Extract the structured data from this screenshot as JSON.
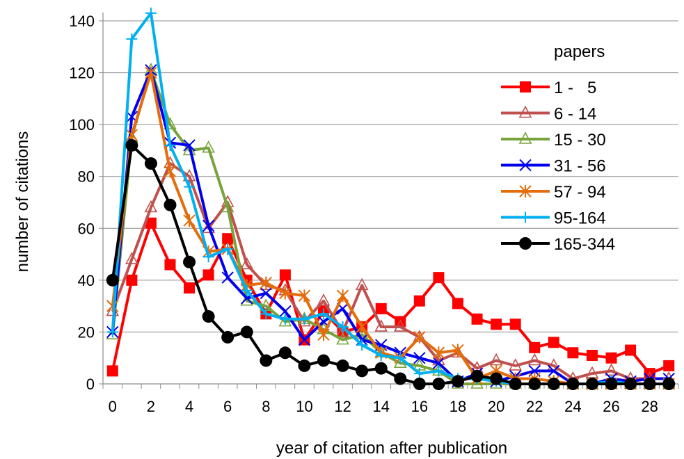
{
  "chart_data": {
    "type": "line",
    "xlabel": "year of citation after publication",
    "ylabel": "number of citations",
    "xlim": [
      -0.5,
      29.5
    ],
    "ylim": [
      0,
      140
    ],
    "x_ticks": [
      0,
      2,
      4,
      6,
      8,
      10,
      12,
      14,
      16,
      18,
      20,
      22,
      24,
      26,
      28
    ],
    "y_ticks": [
      0,
      20,
      40,
      60,
      80,
      100,
      120,
      140
    ],
    "grid": "horizontal",
    "legend_title": "papers",
    "legend_position": "top-right",
    "x": [
      0,
      1,
      2,
      3,
      4,
      5,
      6,
      7,
      8,
      9,
      10,
      11,
      12,
      13,
      14,
      15,
      16,
      17,
      18,
      19,
      20,
      21,
      22,
      23,
      24,
      25,
      26,
      27,
      28,
      29
    ],
    "series": [
      {
        "name": "1 -   5",
        "color": "#ff0000",
        "marker": "square",
        "values": [
          5,
          40,
          62,
          46,
          37,
          42,
          56,
          40,
          27,
          42,
          17,
          28,
          20,
          22,
          29,
          24,
          32,
          41,
          31,
          25,
          23,
          23,
          14,
          16,
          12,
          11,
          10,
          13,
          4,
          7
        ]
      },
      {
        "name": "6 - 14",
        "color": "#c0504d",
        "marker": "triangle",
        "values": [
          28,
          48,
          68,
          85,
          80,
          60,
          70,
          46,
          38,
          36,
          24,
          32,
          20,
          38,
          22,
          22,
          18,
          9,
          12,
          6,
          9,
          7,
          9,
          7,
          2,
          4,
          5,
          2,
          2,
          2
        ]
      },
      {
        "name": "15 - 30",
        "color": "#77a33a",
        "marker": "triangle",
        "values": [
          19,
          95,
          121,
          100,
          90,
          91,
          68,
          32,
          30,
          24,
          25,
          21,
          17,
          19,
          12,
          8,
          7,
          5,
          0,
          0,
          0,
          0,
          0,
          0,
          0,
          0,
          0,
          0,
          0,
          0
        ]
      },
      {
        "name": "31 - 56",
        "color": "#0000ee",
        "marker": "x",
        "values": [
          20,
          103,
          121,
          93,
          92,
          61,
          41,
          33,
          35,
          28,
          17,
          24,
          29,
          17,
          15,
          12,
          10,
          8,
          1,
          4,
          1,
          3,
          5,
          5,
          0,
          0,
          2,
          1,
          2,
          2
        ]
      },
      {
        "name": "57 - 94",
        "color": "#e46c0a",
        "marker": "asterisk",
        "values": [
          30,
          96,
          120,
          82,
          63,
          51,
          52,
          38,
          39,
          35,
          34,
          19,
          34,
          22,
          12,
          10,
          18,
          12,
          13,
          2,
          5,
          2,
          2,
          1,
          0,
          0,
          0,
          0,
          0,
          0
        ]
      },
      {
        "name": "95-164",
        "color": "#00b0f0",
        "marker": "plus",
        "values": [
          20,
          133,
          143,
          92,
          76,
          49,
          52,
          36,
          27,
          25,
          25,
          27,
          22,
          15,
          11,
          10,
          4,
          5,
          2,
          2,
          1,
          0,
          0,
          0,
          0,
          0,
          1,
          0,
          0,
          0
        ]
      },
      {
        "name": "165-344",
        "color": "#000000",
        "marker": "circle",
        "values": [
          40,
          92,
          85,
          69,
          47,
          26,
          18,
          20,
          9,
          12,
          7,
          9,
          7,
          5,
          6,
          2,
          0,
          0,
          1,
          3,
          2,
          0,
          0,
          0,
          0,
          0,
          0,
          0,
          0,
          0
        ]
      }
    ]
  }
}
